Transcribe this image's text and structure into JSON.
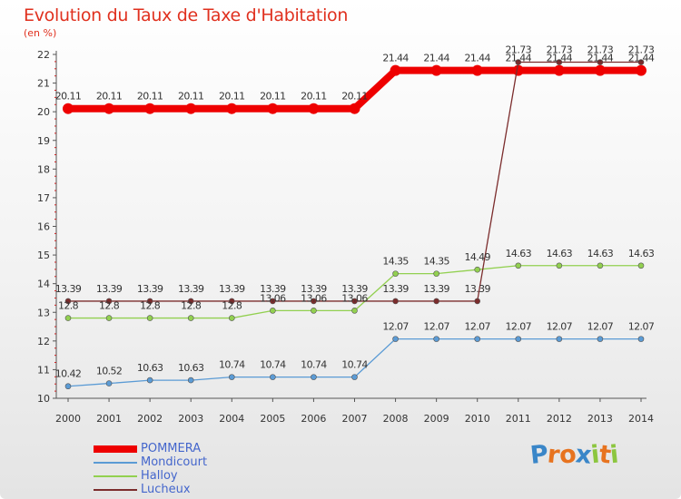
{
  "header": {
    "title": "Evolution du Taux de Taxe d'Habitation",
    "subtitle": "(en %)"
  },
  "logo": {
    "text": "Proxiti",
    "letter_colors": [
      "#3a86c8",
      "#e7731f",
      "#e7731f",
      "#3a86c8",
      "#8cc63f",
      "#e7731f",
      "#8cc63f"
    ]
  },
  "chart_data": {
    "type": "line",
    "title": "Evolution du Taux de Taxe d'Habitation",
    "ylabel": "(en %)",
    "xlabel": "",
    "ylim": [
      10,
      22
    ],
    "yticks": [
      "10",
      "11",
      "12",
      "13",
      "14",
      "15",
      "16",
      "17",
      "18",
      "19",
      "20",
      "21",
      "22"
    ],
    "categories": [
      "2000",
      "2001",
      "2002",
      "2003",
      "2004",
      "2005",
      "2006",
      "2007",
      "2008",
      "2009",
      "2010",
      "2011",
      "2012",
      "2013",
      "2014"
    ],
    "grid": false,
    "legend_position": "bottom-left",
    "series": [
      {
        "name": "POMMERA",
        "color": "#ee0000",
        "values": [
          20.11,
          20.11,
          20.11,
          20.11,
          20.11,
          20.11,
          20.11,
          20.11,
          21.44,
          21.44,
          21.44,
          21.44,
          21.44,
          21.44,
          21.44
        ],
        "labels": [
          "20.11",
          "20.11",
          "20.11",
          "20.11",
          "20.11",
          "20.11",
          "20.11",
          "20.11",
          "21.44",
          "21.44",
          "21.44",
          "21.44",
          "21.44",
          "21.44",
          "21.44"
        ]
      },
      {
        "name": "Mondicourt",
        "color": "#5b9bd5",
        "values": [
          10.42,
          10.52,
          10.63,
          10.63,
          10.74,
          10.74,
          10.74,
          10.74,
          12.07,
          12.07,
          12.07,
          12.07,
          12.07,
          12.07,
          12.07
        ],
        "labels": [
          "10.42",
          "10.52",
          "10.63",
          "10.63",
          "10.74",
          "10.74",
          "10.74",
          "10.74",
          "12.07",
          "12.07",
          "12.07",
          "12.07",
          "12.07",
          "12.07",
          "12.07"
        ]
      },
      {
        "name": "Halloy",
        "color": "#92d050",
        "values": [
          12.8,
          12.8,
          12.8,
          12.8,
          12.8,
          13.06,
          13.06,
          13.06,
          14.35,
          14.35,
          14.49,
          14.63,
          14.63,
          14.63,
          14.63
        ],
        "labels": [
          "12.8",
          "12.8",
          "12.8",
          "12.8",
          "12.8",
          "13.06",
          "13.06",
          "13.06",
          "14.35",
          "14.35",
          "14.49",
          "14.63",
          "14.63",
          "14.63",
          "14.63"
        ]
      },
      {
        "name": "Lucheux",
        "color": "#7b2c2c",
        "values": [
          13.39,
          13.39,
          13.39,
          13.39,
          13.39,
          13.39,
          13.39,
          13.39,
          13.39,
          13.39,
          13.39,
          21.73,
          21.73,
          21.73,
          21.73
        ],
        "labels": [
          "13.39",
          "13.39",
          "13.39",
          "13.39",
          "13.39",
          "13.39",
          "13.39",
          "13.39",
          "13.39",
          "13.39",
          "13.39",
          "21.73",
          "21.73",
          "21.73",
          "21.73"
        ]
      }
    ]
  }
}
